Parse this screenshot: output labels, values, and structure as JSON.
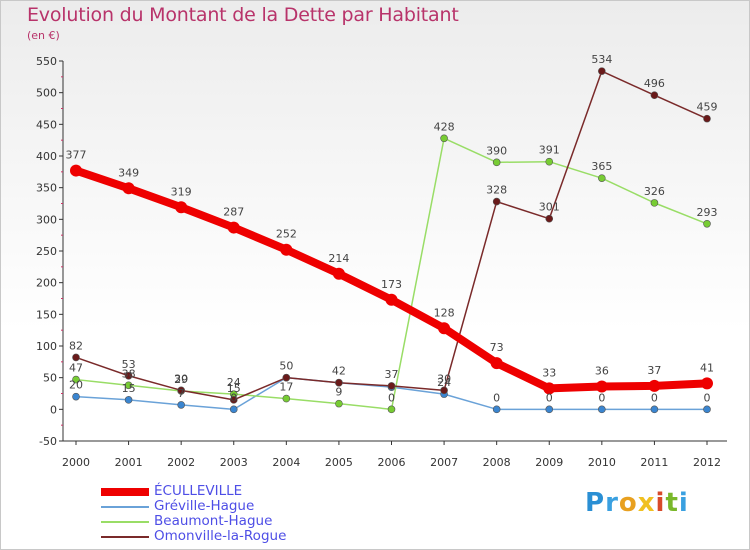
{
  "chart_data": {
    "type": "line",
    "title": "Evolution du Montant de la Dette par Habitant",
    "subtitle": "(en €)",
    "xlabel": "",
    "ylabel": "",
    "categories": [
      "2000",
      "2001",
      "2002",
      "2003",
      "2004",
      "2005",
      "2006",
      "2007",
      "2008",
      "2009",
      "2010",
      "2011",
      "2012"
    ],
    "ylim": [
      -50,
      550
    ],
    "yticks": [
      -50,
      0,
      50,
      100,
      150,
      200,
      250,
      300,
      350,
      400,
      450,
      500,
      550
    ],
    "grid": false,
    "legend_position": "bottom-left",
    "series": [
      {
        "name": "ÉCULLEVILLE",
        "color": "#ee0000",
        "width": 8,
        "marker": 6,
        "values": [
          377,
          349,
          319,
          287,
          252,
          214,
          173,
          128,
          73,
          33,
          36,
          37,
          41
        ],
        "labels": [
          "377",
          "349",
          "319",
          "287",
          "252",
          "214",
          "173",
          "128",
          "73",
          "33",
          "36",
          "37",
          "41"
        ]
      },
      {
        "name": "Gréville-Hague",
        "color": "#6aa2d8",
        "width": 1.5,
        "marker": 3.5,
        "marker_fill": "#3a85d0",
        "values": [
          20,
          15,
          7,
          0,
          50,
          42,
          35,
          24,
          0,
          0,
          0,
          0,
          0
        ],
        "labels": [
          "20",
          "15",
          "7",
          "0",
          "",
          "",
          "",
          "24",
          "0",
          "0",
          "0",
          "0",
          "0"
        ]
      },
      {
        "name": "Beaumont-Hague",
        "color": "#99dd66",
        "width": 1.5,
        "marker": 3.5,
        "marker_fill": "#77cc33",
        "values": [
          47,
          38,
          29,
          24,
          17,
          9,
          0,
          428,
          390,
          391,
          365,
          326,
          293
        ],
        "labels": [
          "47",
          "38",
          "29",
          "24",
          "17",
          "9",
          "0",
          "428",
          "390",
          "391",
          "365",
          "326",
          "293"
        ]
      },
      {
        "name": "Omonville-la-Rogue",
        "color": "#7a2a2a",
        "width": 1.5,
        "marker": 3.5,
        "marker_fill": "#6a1a1a",
        "values": [
          82,
          53,
          30,
          15,
          50,
          42,
          37,
          30,
          328,
          301,
          534,
          496,
          459
        ],
        "labels": [
          "82",
          "53",
          "30",
          "15",
          "50",
          "42",
          "37",
          "30",
          "328",
          "301",
          "534",
          "496",
          "459"
        ]
      }
    ]
  },
  "brand": {
    "logo_letters": [
      "P",
      "r",
      "o",
      "x",
      "i",
      "t",
      "i"
    ]
  }
}
